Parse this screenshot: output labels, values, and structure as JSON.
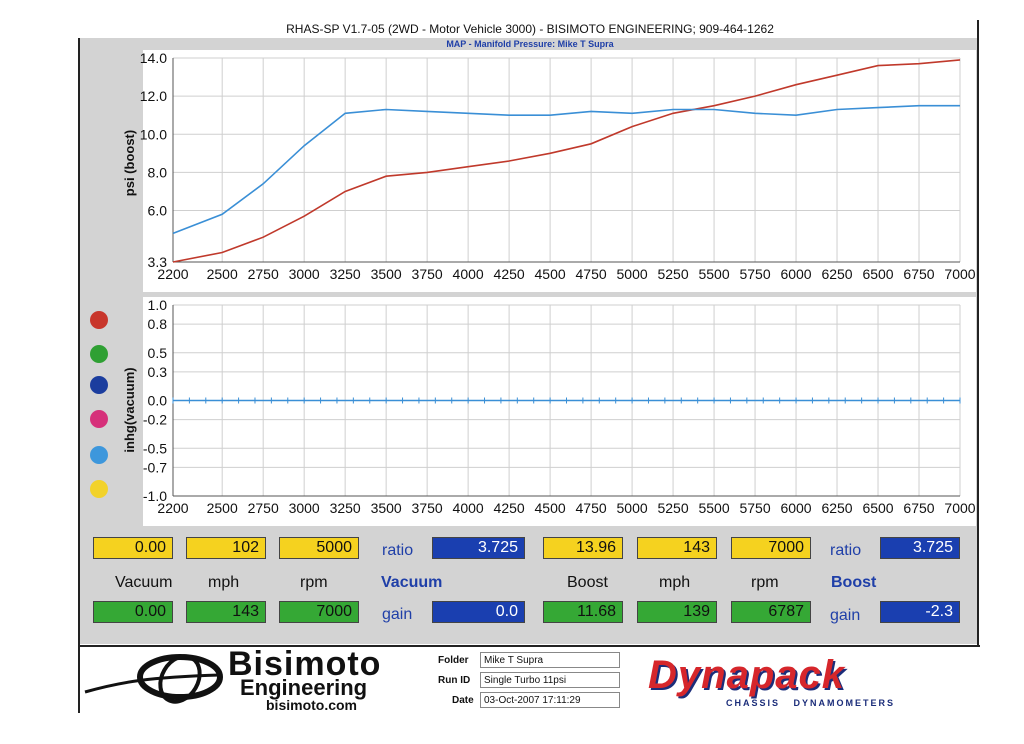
{
  "header": {
    "title": "RHAS-SP V1.7-05   (2WD - Motor Vehicle 3000) - BISIMOTO ENGINEERING; 909-464-1262",
    "subtitle": "MAP - Manifold Pressure: Mike T Supra"
  },
  "chart_data": [
    {
      "type": "line",
      "ylabel": "psi (boost)",
      "xlim": [
        2200,
        7000
      ],
      "ylim": [
        3.3,
        14.0
      ],
      "x_ticks": [
        "2200",
        "2500",
        "2750",
        "3000",
        "3250",
        "3500",
        "3750",
        "4000",
        "4250",
        "4500",
        "4750",
        "5000",
        "5250",
        "5500",
        "5750",
        "6000",
        "6250",
        "6500",
        "6750",
        "7000"
      ],
      "y_ticks": [
        "14.0",
        "12.0",
        "10.0",
        "8.0",
        "6.0",
        "3.3"
      ],
      "grid": true,
      "series": [
        {
          "color": "#c0392b",
          "x": [
            2200,
            2500,
            2750,
            3000,
            3250,
            3500,
            3750,
            4000,
            4250,
            4500,
            4750,
            5000,
            5250,
            5500,
            5750,
            6000,
            6250,
            6500,
            6750,
            7000
          ],
          "y": [
            3.3,
            3.8,
            4.6,
            5.7,
            7.0,
            7.8,
            8.0,
            8.3,
            8.6,
            9.0,
            9.5,
            10.4,
            11.1,
            11.5,
            12.0,
            12.6,
            13.1,
            13.6,
            13.7,
            13.9
          ]
        },
        {
          "color": "#3a8fd6",
          "x": [
            2200,
            2500,
            2750,
            3000,
            3250,
            3500,
            3750,
            4000,
            4250,
            4500,
            4750,
            5000,
            5250,
            5500,
            5750,
            6000,
            6250,
            6500,
            6750,
            7000
          ],
          "y": [
            4.8,
            5.8,
            7.4,
            9.4,
            11.1,
            11.3,
            11.2,
            11.1,
            11.0,
            11.0,
            11.2,
            11.1,
            11.3,
            11.3,
            11.1,
            11.0,
            11.3,
            11.4,
            11.5,
            11.5
          ]
        }
      ]
    },
    {
      "type": "line",
      "ylabel": "inhg(vacuum)",
      "xlim": [
        2200,
        7000
      ],
      "ylim": [
        -1.0,
        1.0
      ],
      "x_ticks": [
        "2200",
        "2500",
        "2750",
        "3000",
        "3250",
        "3500",
        "3750",
        "4000",
        "4250",
        "4500",
        "4750",
        "5000",
        "5250",
        "5500",
        "5750",
        "6000",
        "6250",
        "6500",
        "6750",
        "7000"
      ],
      "y_ticks": [
        "1.0",
        "0.8",
        "0.5",
        "0.3",
        "0.0",
        "-0.2",
        "-0.5",
        "-0.7",
        "-1.0"
      ],
      "grid": true,
      "series": [
        {
          "color": "#3a8fd6",
          "x": [
            2200,
            7000
          ],
          "y": [
            0.0,
            0.0
          ]
        }
      ]
    }
  ],
  "legend_colors": [
    "#c8362b",
    "#2fa033",
    "#1b3d9e",
    "#d6307a",
    "#3d97dc",
    "#f2d22a"
  ],
  "readouts": {
    "left_top": [
      "0.00",
      "102",
      "5000"
    ],
    "left_ratio_label": "ratio",
    "left_ratio": "3.725",
    "left_labels": [
      "Vacuum",
      "mph",
      "rpm"
    ],
    "left_title": "Vacuum",
    "left_bottom": [
      "0.00",
      "143",
      "7000"
    ],
    "left_gain_label": "gain",
    "left_gain": "0.0",
    "right_top": [
      "13.96",
      "143",
      "7000"
    ],
    "right_ratio_label": "ratio",
    "right_ratio": "3.725",
    "right_labels": [
      "Boost",
      "mph",
      "rpm"
    ],
    "right_title": "Boost",
    "right_bottom": [
      "11.68",
      "139",
      "6787"
    ],
    "right_gain_label": "gain",
    "right_gain": "-2.3"
  },
  "footer": {
    "logo_text": "Bisimoto",
    "logo_sub": "Engineering",
    "logo_url": "bisimoto.com",
    "folder_label": "Folder",
    "folder": "Mike T Supra",
    "runid_label": "Run ID",
    "runid": "Single Turbo 11psi",
    "date_label": "Date",
    "date": "03-Oct-2007   17:11:29",
    "brand": "Dynapack",
    "brand_sub": "CHASSIS   DYNAMOMETERS"
  }
}
